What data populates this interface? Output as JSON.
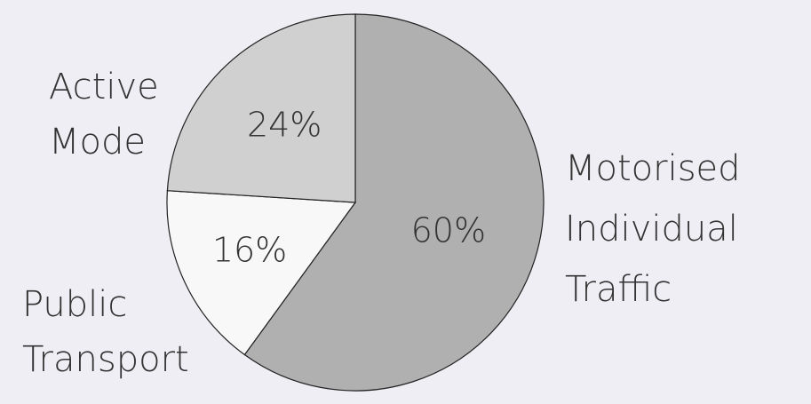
{
  "chart_data": {
    "type": "pie",
    "categories": [
      "Motorised Individual Traffic",
      "Public Transport",
      "Active Mode"
    ],
    "values": [
      60,
      16,
      24
    ],
    "value_labels": [
      "60%",
      "16%",
      "24%"
    ],
    "colors": [
      "#b0b0b0",
      "#f8f8f8",
      "#d0d0d0"
    ]
  }
}
